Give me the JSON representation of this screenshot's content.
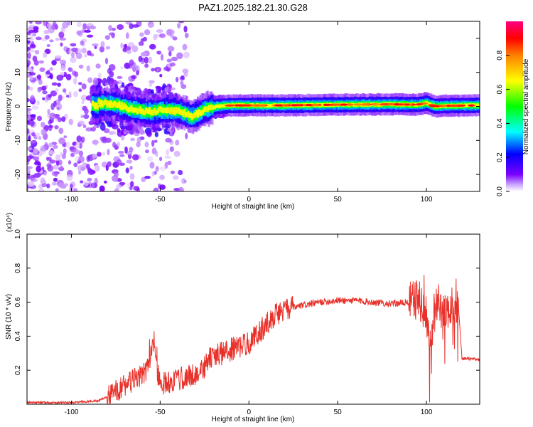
{
  "title": "PAZ1.2025.182.21.30.G28",
  "chart_data": [
    {
      "type": "heatmap",
      "xlabel": "Height of straight line (km)",
      "ylabel": "Frequency (Hz)",
      "xlim": [
        -125,
        130
      ],
      "ylim": [
        -25,
        25
      ],
      "xticks": [
        -100,
        -50,
        0,
        50,
        100
      ],
      "xtick_labels": [
        "-100",
        "-50",
        "0",
        "50",
        "100"
      ],
      "yticks": [
        20,
        10,
        0,
        -10,
        -20
      ],
      "ytick_labels": [
        "20",
        "10",
        "0",
        "-10",
        "-20"
      ],
      "colorbar": {
        "label": "Normalized spectral amplitude",
        "range": [
          0,
          1
        ],
        "ticks": [
          0.0,
          0.2,
          0.4,
          0.6,
          0.8
        ],
        "tick_labels": [
          "0.0",
          "0.2",
          "0.4",
          "0.6",
          "0.8"
        ],
        "colormap": [
          "#ffffff",
          "#7a00ff",
          "#0000ff",
          "#00ffff",
          "#00ff00",
          "#ffff00",
          "#ff8000",
          "#ff0000",
          "#ff0080"
        ]
      },
      "ridge": {
        "x": [
          -85,
          -75,
          -65,
          -55,
          -45,
          -38,
          -32,
          -25,
          -18,
          -10,
          0,
          20,
          50,
          80,
          95,
          100,
          105,
          110,
          130
        ],
        "frequency": [
          1,
          0.5,
          -1,
          -1.5,
          -1,
          -1.5,
          -3,
          -1,
          0,
          0.3,
          0.3,
          0.3,
          0.5,
          0.6,
          0.5,
          1,
          0,
          0.2,
          0.3
        ]
      },
      "grid": false
    },
    {
      "type": "line",
      "xlabel": "Height of straight line (km)",
      "ylabel": "SNR (10 * v/v)",
      "y_multiplier": "(x10⁴)",
      "xlim": [
        -125,
        130
      ],
      "ylim": [
        0,
        1.0
      ],
      "xticks": [
        -100,
        -50,
        0,
        50,
        100
      ],
      "xtick_labels": [
        "-100",
        "-50",
        "0",
        "50",
        "100"
      ],
      "yticks": [
        0.2,
        0.4,
        0.6,
        0.8,
        1.0
      ],
      "ytick_labels": [
        "0.2",
        "0.4",
        "0.6",
        "0.8",
        "1.0"
      ],
      "line_color": "#e8312a",
      "series": [
        {
          "x": [
            -125,
            -100,
            -85,
            -78,
            -72,
            -65,
            -58,
            -54,
            -50,
            -44,
            -38,
            -32,
            -27,
            -25,
            -22,
            -15,
            -8,
            0,
            8,
            15,
            22,
            30,
            40,
            50,
            60,
            70,
            80,
            90,
            95,
            100,
            102,
            105,
            110,
            115,
            118,
            120,
            130
          ],
          "values": [
            0.01,
            0.01,
            0.02,
            0.05,
            0.1,
            0.14,
            0.18,
            0.32,
            0.12,
            0.13,
            0.15,
            0.17,
            0.19,
            0.22,
            0.27,
            0.3,
            0.33,
            0.36,
            0.45,
            0.53,
            0.56,
            0.58,
            0.6,
            0.61,
            0.61,
            0.6,
            0.59,
            0.6,
            0.62,
            0.55,
            0.3,
            0.6,
            0.55,
            0.57,
            0.58,
            0.27,
            0.26
          ]
        }
      ],
      "grid": false
    }
  ]
}
